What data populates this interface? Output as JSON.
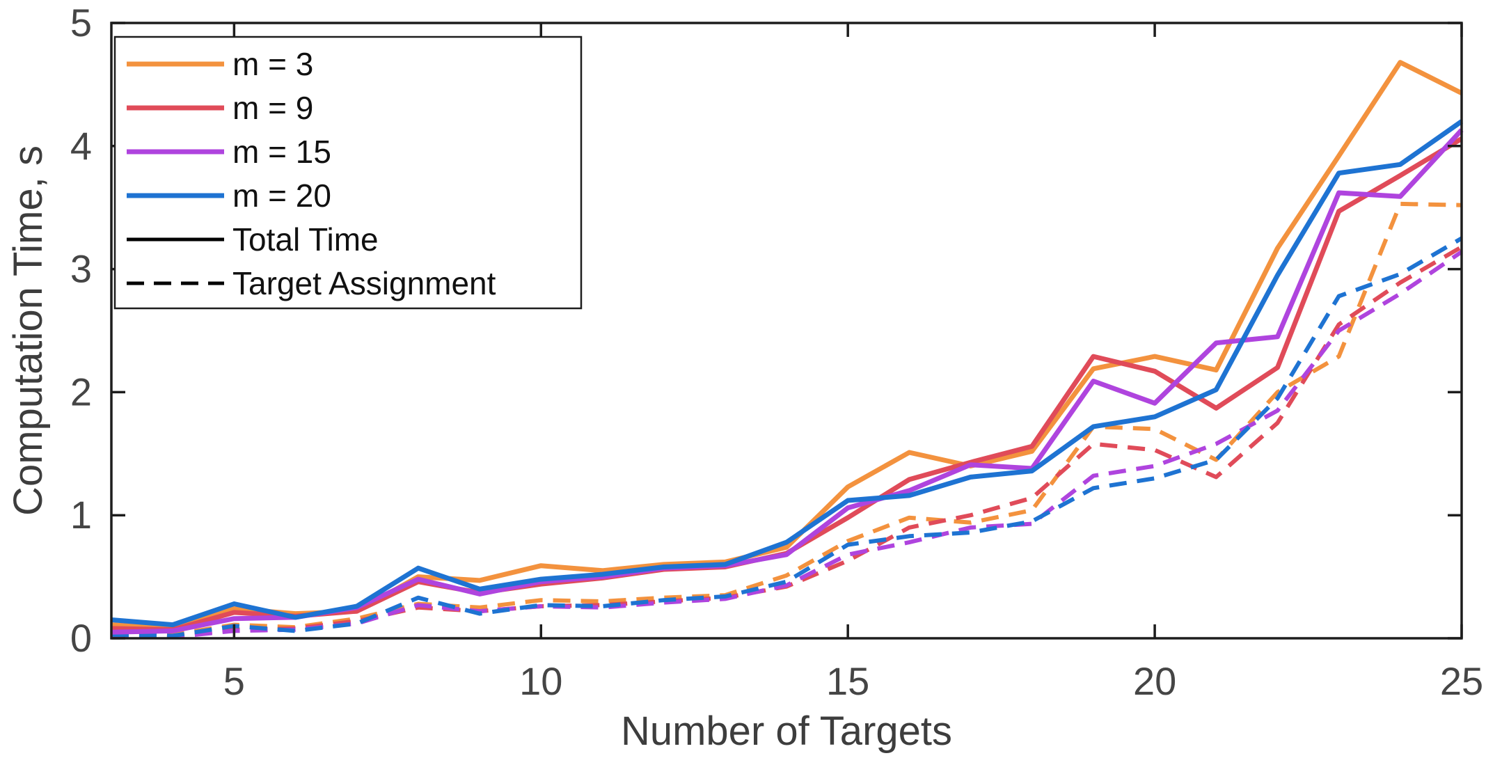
{
  "figure": {
    "background": "#ffffff",
    "axis_color": "#1d1d1d",
    "tick_label_color": "#454545",
    "xlabel": "Number of Targets",
    "ylabel": "Computation Time, s",
    "x_ticks": [
      5,
      10,
      15,
      20,
      25
    ],
    "y_ticks": [
      0,
      1,
      2,
      3,
      4,
      5
    ],
    "x_range": [
      3,
      25
    ],
    "y_range": [
      0,
      5
    ],
    "grid": "off",
    "legend_position": "top-left"
  },
  "legend": {
    "items": [
      {
        "label": "m = 3",
        "color": "#F3923E",
        "style": "solid"
      },
      {
        "label": "m = 9",
        "color": "#E04B59",
        "style": "solid"
      },
      {
        "label": "m = 15",
        "color": "#AF44DE",
        "style": "solid"
      },
      {
        "label": "m = 20",
        "color": "#1E73D2",
        "style": "solid"
      },
      {
        "label": "Total Time",
        "color": "#000000",
        "style": "solid"
      },
      {
        "label": "Target Assignment",
        "color": "#000000",
        "style": "dashed"
      }
    ]
  },
  "chart_data": {
    "type": "line",
    "title": "",
    "xlabel": "Number of Targets",
    "ylabel": "Computation Time, s",
    "xlim": [
      3,
      25
    ],
    "ylim": [
      0,
      5
    ],
    "x": [
      3,
      4,
      5,
      6,
      7,
      8,
      9,
      10,
      11,
      12,
      13,
      14,
      15,
      16,
      17,
      18,
      19,
      20,
      21,
      22,
      23,
      24,
      25
    ],
    "series": [
      {
        "id": "m3-target-assignment",
        "group": "m = 3",
        "kind": "Target Assignment",
        "color": "#F3923E",
        "line_style": "dashed",
        "values": [
          0.05,
          0.03,
          0.11,
          0.09,
          0.16,
          0.28,
          0.25,
          0.31,
          0.3,
          0.33,
          0.35,
          0.51,
          0.79,
          0.98,
          0.94,
          1.04,
          1.72,
          1.7,
          1.45,
          2.0,
          2.29,
          3.53,
          3.52
        ]
      },
      {
        "id": "m9-target-assignment",
        "group": "m = 9",
        "kind": "Target Assignment",
        "color": "#E04B59",
        "line_style": "dashed",
        "values": [
          0.04,
          0.02,
          0.07,
          0.08,
          0.14,
          0.25,
          0.22,
          0.26,
          0.27,
          0.3,
          0.33,
          0.42,
          0.63,
          0.9,
          1.0,
          1.14,
          1.58,
          1.53,
          1.31,
          1.75,
          2.55,
          2.89,
          3.18
        ]
      },
      {
        "id": "m15-target-assignment",
        "group": "m = 15",
        "kind": "Target Assignment",
        "color": "#AF44DE",
        "line_style": "dashed",
        "values": [
          0.02,
          0.01,
          0.06,
          0.07,
          0.12,
          0.27,
          0.22,
          0.26,
          0.25,
          0.29,
          0.32,
          0.43,
          0.68,
          0.78,
          0.9,
          0.93,
          1.32,
          1.4,
          1.58,
          1.85,
          2.5,
          2.8,
          3.14
        ]
      },
      {
        "id": "m20-target-assignment",
        "group": "m = 20",
        "kind": "Target Assignment",
        "color": "#1E73D2",
        "line_style": "dashed",
        "values": [
          0.03,
          0.02,
          0.1,
          0.06,
          0.12,
          0.33,
          0.2,
          0.27,
          0.26,
          0.31,
          0.34,
          0.46,
          0.76,
          0.83,
          0.86,
          0.95,
          1.22,
          1.3,
          1.45,
          1.95,
          2.78,
          2.96,
          3.25
        ]
      },
      {
        "id": "m3-total-time",
        "group": "m = 3",
        "kind": "Total Time",
        "color": "#F3923E",
        "line_style": "solid",
        "values": [
          0.11,
          0.08,
          0.24,
          0.2,
          0.22,
          0.5,
          0.47,
          0.59,
          0.55,
          0.6,
          0.62,
          0.74,
          1.23,
          1.51,
          1.4,
          1.52,
          2.19,
          2.29,
          2.18,
          3.17,
          3.92,
          4.68,
          4.43
        ]
      },
      {
        "id": "m9-total-time",
        "group": "m = 9",
        "kind": "Total Time",
        "color": "#E04B59",
        "line_style": "solid",
        "values": [
          0.08,
          0.07,
          0.21,
          0.18,
          0.22,
          0.46,
          0.37,
          0.44,
          0.49,
          0.56,
          0.58,
          0.69,
          0.98,
          1.29,
          1.43,
          1.56,
          2.29,
          2.17,
          1.87,
          2.2,
          3.47,
          3.76,
          4.06
        ]
      },
      {
        "id": "m15-total-time",
        "group": "m = 15",
        "kind": "Total Time",
        "color": "#AF44DE",
        "line_style": "solid",
        "values": [
          0.05,
          0.06,
          0.16,
          0.17,
          0.25,
          0.48,
          0.36,
          0.46,
          0.5,
          0.57,
          0.59,
          0.68,
          1.06,
          1.2,
          1.41,
          1.38,
          2.09,
          1.91,
          2.4,
          2.45,
          3.62,
          3.59,
          4.13
        ]
      },
      {
        "id": "m20-total-time",
        "group": "m = 20",
        "kind": "Total Time",
        "color": "#1E73D2",
        "line_style": "solid",
        "values": [
          0.15,
          0.11,
          0.28,
          0.17,
          0.26,
          0.57,
          0.4,
          0.48,
          0.52,
          0.58,
          0.6,
          0.78,
          1.12,
          1.16,
          1.31,
          1.36,
          1.72,
          1.8,
          2.02,
          2.95,
          3.78,
          3.85,
          4.2
        ]
      }
    ]
  }
}
